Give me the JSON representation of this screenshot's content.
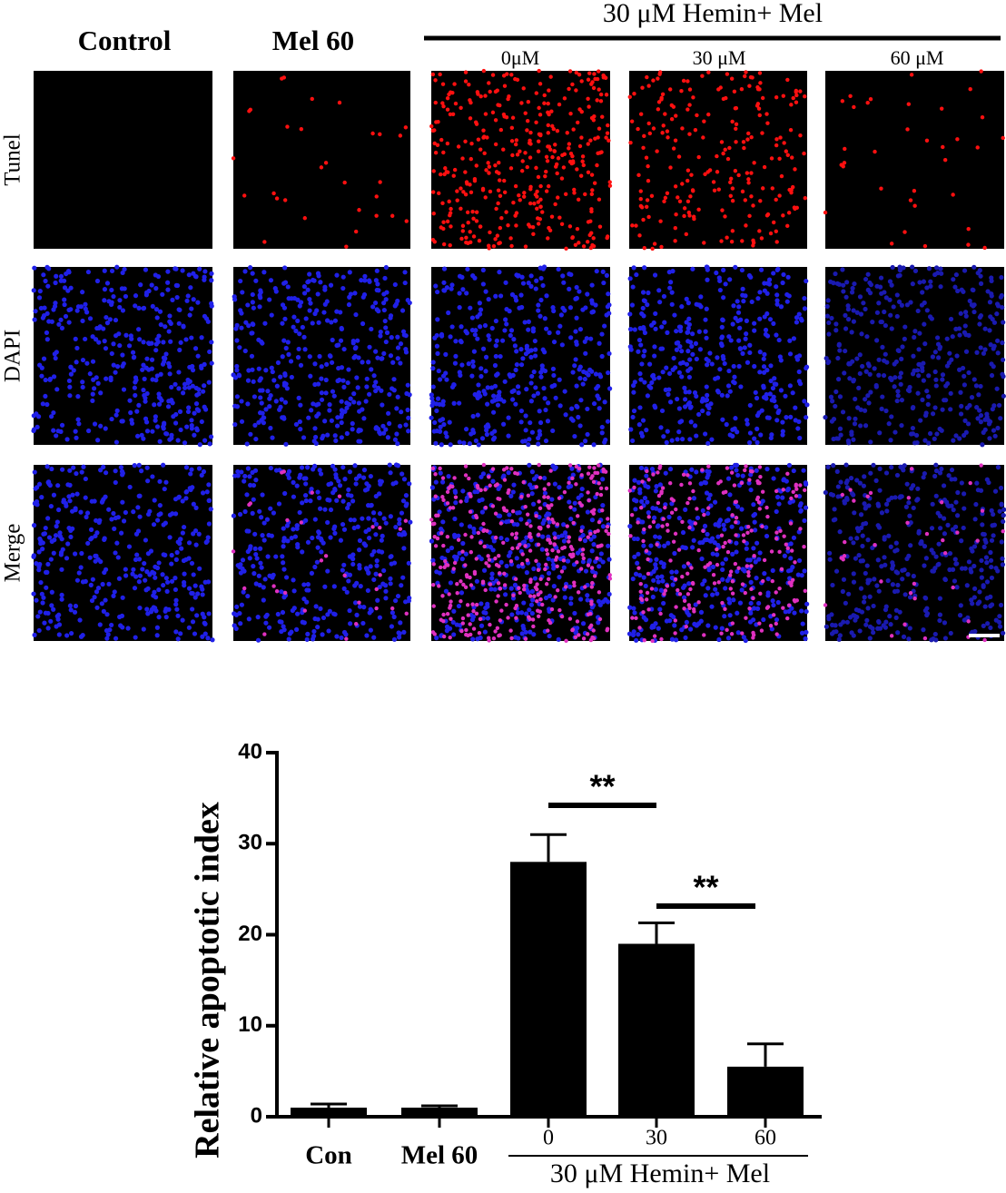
{
  "figure": {
    "columns": [
      "Control",
      "Mel 60",
      "0μM",
      "30 μM",
      "60 μM"
    ],
    "group_label": "30 μM Hemin+ Mel",
    "rows": [
      "Tunel",
      "DAPI",
      "Merge"
    ]
  },
  "chart_data": {
    "type": "bar",
    "y_label": "Relative apoptotic index",
    "categories": [
      "Con",
      "Mel 60",
      "0",
      "30",
      "60"
    ],
    "group_label": "30 μM Hemin+ Mel",
    "values": [
      1.0,
      1.0,
      28,
      19,
      5.5
    ],
    "errors": [
      0.4,
      0.2,
      3,
      2.3,
      2.5
    ],
    "color": "#000000",
    "ylim": [
      0,
      40
    ],
    "yticks": [
      0,
      10,
      20,
      30,
      40
    ],
    "significance": [
      {
        "from": "0",
        "to": "30",
        "label": "**"
      },
      {
        "from": "30",
        "to": "60",
        "label": "**"
      }
    ]
  }
}
